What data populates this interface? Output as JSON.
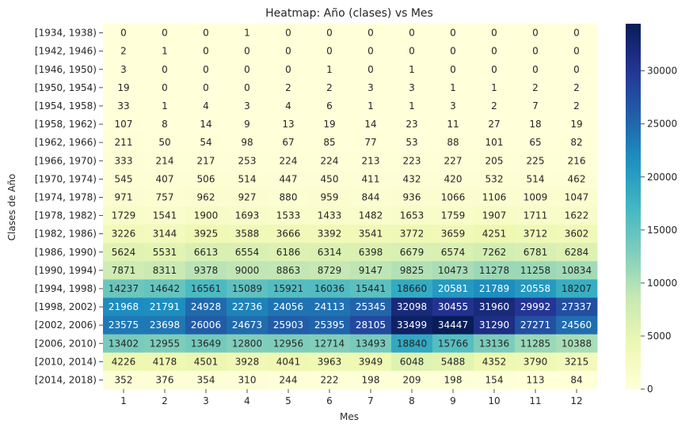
{
  "chart_data": {
    "type": "heatmap",
    "title": "Heatmap: Año (clases) vs Mes",
    "xlabel": "Mes",
    "ylabel": "Clases de Año",
    "x_categories": [
      "1",
      "2",
      "3",
      "4",
      "5",
      "6",
      "7",
      "8",
      "9",
      "10",
      "11",
      "12"
    ],
    "y_categories": [
      "[1934, 1938)",
      "[1942, 1946)",
      "[1946, 1950)",
      "[1950, 1954)",
      "[1954, 1958)",
      "[1958, 1962)",
      "[1962, 1966)",
      "[1966, 1970)",
      "[1970, 1974)",
      "[1974, 1978)",
      "[1978, 1982)",
      "[1982, 1986)",
      "[1986, 1990)",
      "[1990, 1994)",
      "[1994, 1998)",
      "[1998, 2002)",
      "[2002, 2006)",
      "[2006, 2010)",
      "[2010, 2014)",
      "[2014, 2018)"
    ],
    "values": [
      [
        0,
        0,
        0,
        1,
        0,
        0,
        0,
        0,
        0,
        0,
        0,
        0
      ],
      [
        2,
        1,
        0,
        0,
        0,
        0,
        0,
        0,
        0,
        0,
        0,
        0
      ],
      [
        3,
        0,
        0,
        0,
        0,
        1,
        0,
        1,
        0,
        0,
        0,
        0
      ],
      [
        19,
        0,
        0,
        0,
        2,
        2,
        3,
        3,
        1,
        1,
        2,
        2
      ],
      [
        33,
        1,
        4,
        3,
        4,
        6,
        1,
        1,
        3,
        2,
        7,
        2
      ],
      [
        107,
        8,
        14,
        9,
        13,
        19,
        14,
        23,
        11,
        27,
        18,
        19
      ],
      [
        211,
        50,
        54,
        98,
        67,
        85,
        77,
        53,
        88,
        101,
        65,
        82
      ],
      [
        333,
        214,
        217,
        253,
        224,
        224,
        213,
        223,
        227,
        205,
        225,
        216
      ],
      [
        545,
        407,
        506,
        514,
        447,
        450,
        411,
        432,
        420,
        532,
        514,
        462
      ],
      [
        971,
        757,
        962,
        927,
        880,
        959,
        844,
        936,
        1066,
        1106,
        1009,
        1047
      ],
      [
        1729,
        1541,
        1900,
        1693,
        1533,
        1433,
        1482,
        1653,
        1759,
        1907,
        1711,
        1622
      ],
      [
        3226,
        3144,
        3925,
        3588,
        3666,
        3392,
        3541,
        3772,
        3659,
        4251,
        3712,
        3602
      ],
      [
        5624,
        5531,
        6613,
        6554,
        6186,
        6314,
        6398,
        6679,
        6574,
        7262,
        6781,
        6284
      ],
      [
        7871,
        8311,
        9378,
        9000,
        8863,
        8729,
        9147,
        9825,
        10473,
        11278,
        11258,
        10834
      ],
      [
        14237,
        14642,
        16561,
        15089,
        15921,
        16036,
        15441,
        18660,
        20581,
        21789,
        20558,
        18207
      ],
      [
        21968,
        21791,
        24928,
        22736,
        24056,
        24113,
        25345,
        32098,
        30455,
        31960,
        29992,
        27337
      ],
      [
        23575,
        23698,
        26006,
        24673,
        25903,
        25395,
        28105,
        33499,
        34447,
        31290,
        27271,
        24560
      ],
      [
        13402,
        12955,
        13649,
        12800,
        12956,
        12714,
        13493,
        18840,
        15766,
        13136,
        11285,
        10388
      ],
      [
        4226,
        4178,
        4501,
        3928,
        4041,
        3963,
        3949,
        6048,
        5488,
        4352,
        3790,
        3215
      ],
      [
        352,
        376,
        354,
        310,
        244,
        222,
        198,
        209,
        198,
        154,
        113,
        84
      ]
    ],
    "colormap": "YlGnBu",
    "colorbar": {
      "vmin": 0,
      "vmax": 34447,
      "ticks": [
        0,
        5000,
        10000,
        15000,
        20000,
        25000,
        30000
      ],
      "tick_labels": [
        "0",
        "5000",
        "10000",
        "15000",
        "20000",
        "25000",
        "30000"
      ]
    },
    "cell_labels": true
  }
}
